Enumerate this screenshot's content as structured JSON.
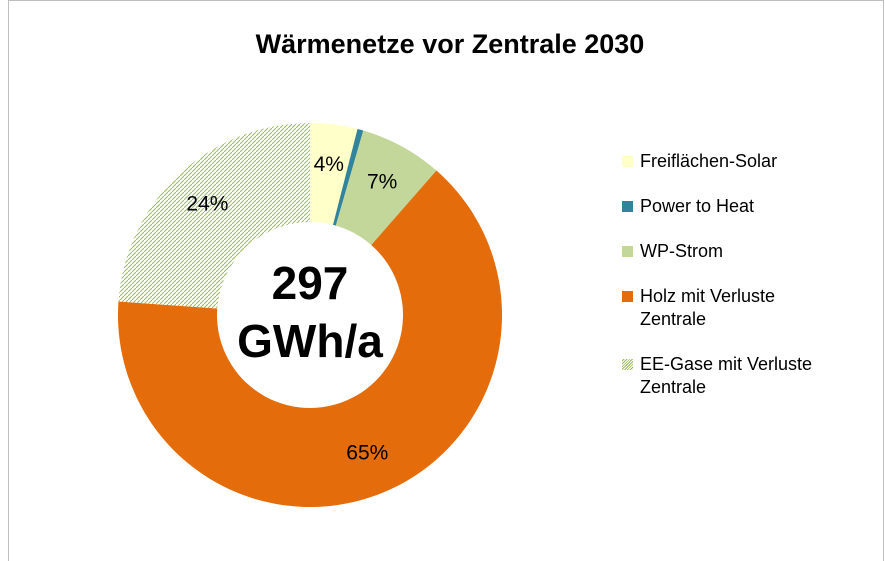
{
  "chart_data": {
    "type": "donut",
    "title": "Wärmenetze vor Zentrale 2030",
    "center_text": [
      "297",
      "GWh/a"
    ],
    "categories": [
      "Freiflächen-Solar",
      "Power to Heat",
      "WP-Strom",
      "Holz mit Verluste Zentrale",
      "EE-Gase mit Verluste Zentrale"
    ],
    "values": [
      4,
      0.5,
      7,
      65,
      24
    ],
    "value_labels": [
      "4%",
      null,
      "7%",
      "65%",
      "24%"
    ],
    "colors": [
      "#FFFFC9",
      "#31849B",
      "#C4D79B",
      "#E46C0A",
      "pattern:#9BBB59"
    ],
    "legend": "right"
  }
}
